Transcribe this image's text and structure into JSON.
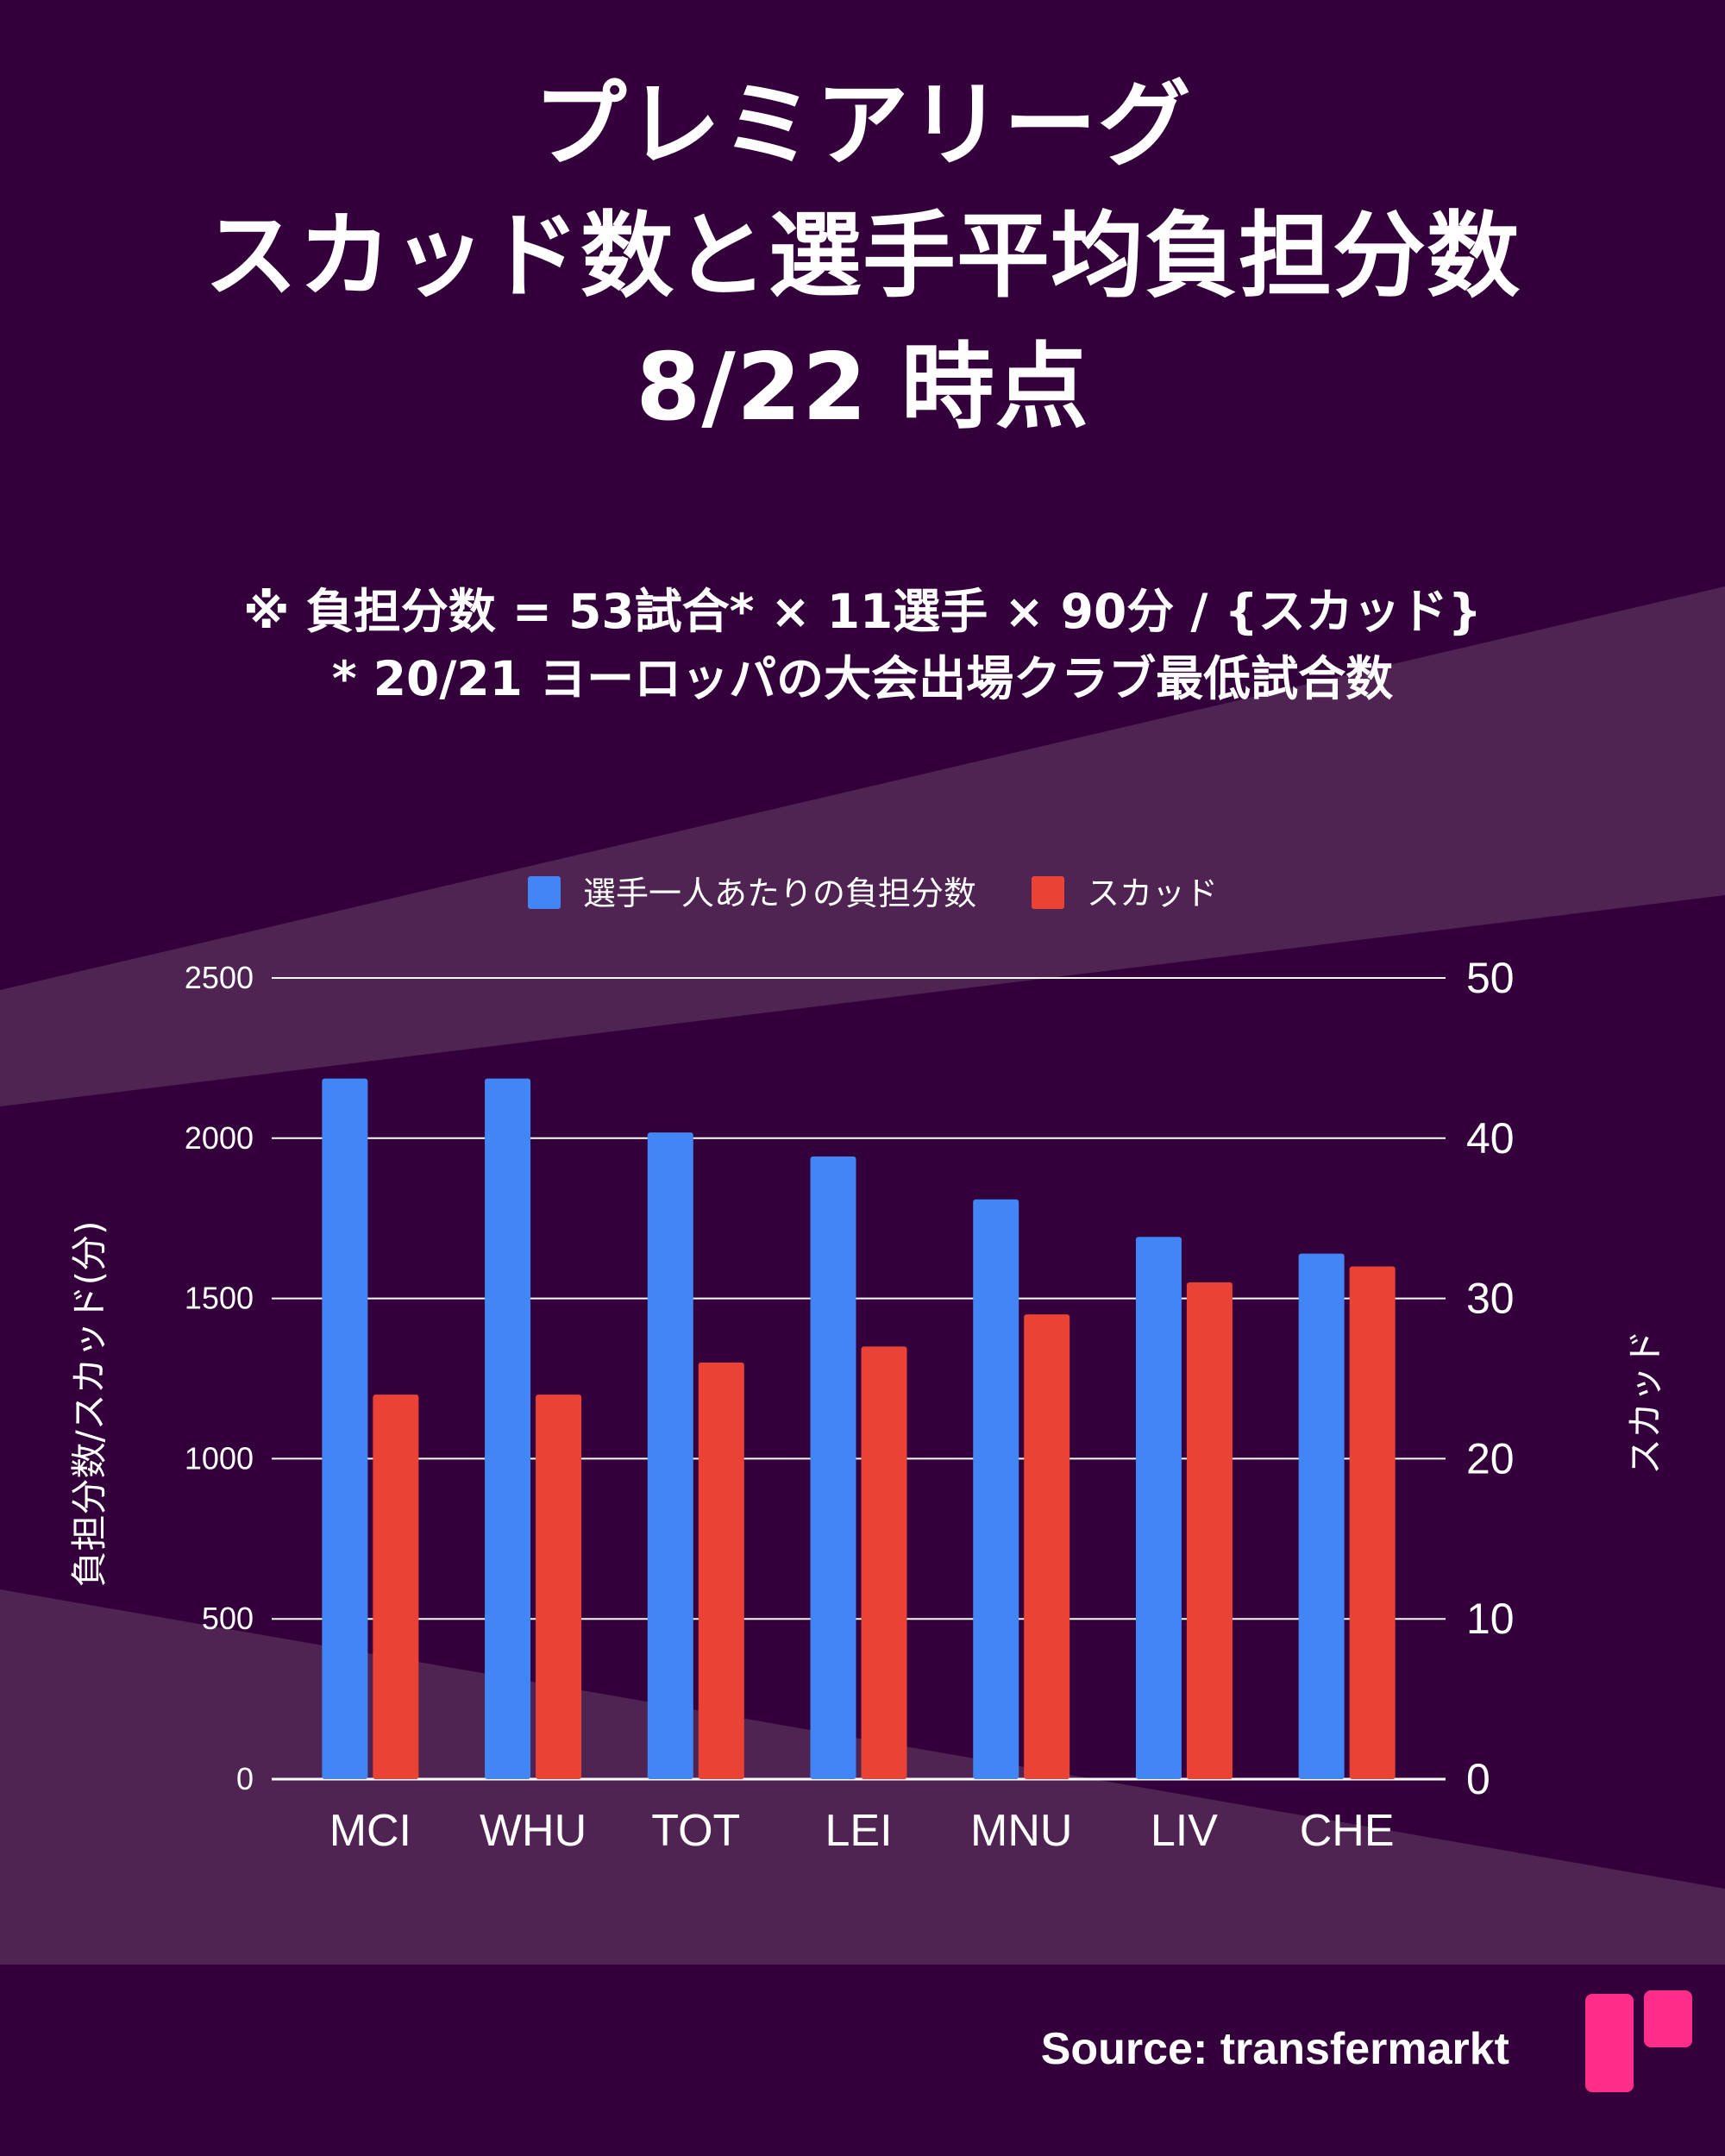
{
  "title": {
    "line1": "プレミアリーグ",
    "line2": "スカッド数と選手平均負担分数",
    "line3": "8/22 時点"
  },
  "note": {
    "line1": "※ 負担分数 = 53試合* × 11選手 × 90分 / {スカッド}",
    "line2": "* 20/21 ヨーロッパの大会出場クラブ最低試合数"
  },
  "source": "Source: transfermarkt",
  "colors": {
    "background": "#34003b",
    "band": "#4f2352",
    "minutes": "#4285f4",
    "squad": "#ea4335",
    "logo": "#ff2d8a"
  },
  "chart_data": {
    "type": "bar",
    "categories": [
      "MCI",
      "WHU",
      "TOT",
      "LEI",
      "MNU",
      "LIV",
      "CHE"
    ],
    "series": [
      {
        "name": "選手一人あたりの負担分数",
        "axis": "left",
        "values": [
          2186,
          2186,
          2018,
          1943,
          1809,
          1692,
          1640
        ]
      },
      {
        "name": "スカッド",
        "axis": "right",
        "values": [
          24,
          24,
          26,
          27,
          29,
          31,
          32
        ]
      }
    ],
    "ylabel": "負担分数/スカッド(分)",
    "y2label": "スカッド",
    "ylim": [
      0,
      2500
    ],
    "y2lim": [
      0,
      50
    ],
    "yticks": [
      "0",
      "500",
      "1000",
      "1500",
      "2000",
      "2500"
    ],
    "y2ticks": [
      "0",
      "10",
      "20",
      "30",
      "40",
      "50"
    ],
    "grid": true,
    "legend": "top-center"
  }
}
